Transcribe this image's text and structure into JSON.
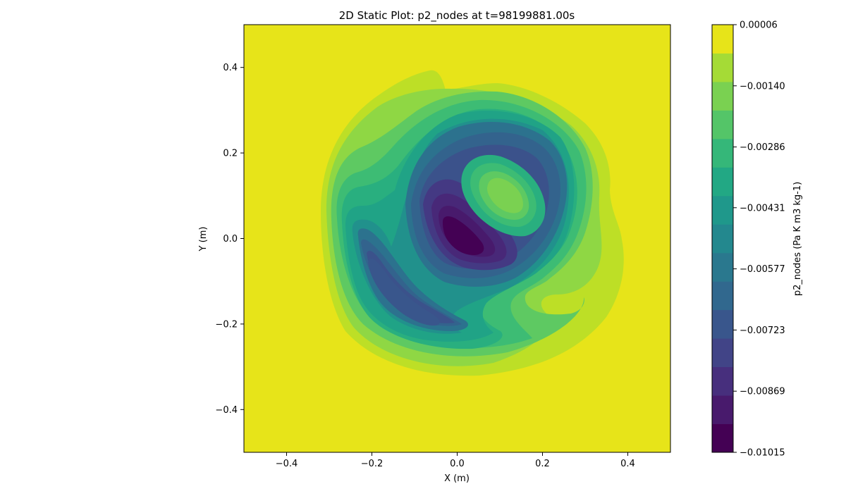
{
  "chart_data": {
    "type": "contour",
    "title": "2D Static Plot: p2_nodes at t=98199881.00s",
    "xlabel": "X (m)",
    "ylabel": "Y (m)",
    "xlim": [
      -0.5,
      0.5
    ],
    "ylim": [
      -0.5,
      0.5
    ],
    "x_ticks": [
      -0.4,
      -0.2,
      0.0,
      0.2,
      0.4
    ],
    "x_tick_labels": [
      "−0.4",
      "−0.2",
      "0.0",
      "0.2",
      "0.4"
    ],
    "y_ticks": [
      0.4,
      0.2,
      0.0,
      -0.2,
      -0.4
    ],
    "y_tick_labels": [
      "0.4",
      "0.2",
      "0.0",
      "−0.2",
      "−0.4"
    ],
    "colorbar": {
      "label": "p2_nodes (Pa K m3 kg-1)",
      "min": -0.01015,
      "max": 6e-05,
      "ticks": [
        6e-05,
        -0.0014,
        -0.00286,
        -0.00431,
        -0.00577,
        -0.00723,
        -0.00869,
        -0.01015
      ],
      "tick_labels": [
        "0.00006",
        "−0.00140",
        "−0.00286",
        "−0.00431",
        "−0.00577",
        "−0.00723",
        "−0.00869",
        "−0.01015"
      ],
      "levels": 14,
      "colors": [
        "#440154",
        "#481a6c",
        "#472f7d",
        "#414487",
        "#39568c",
        "#31688e",
        "#2a788e",
        "#23888e",
        "#1f988b",
        "#22a884",
        "#35b779",
        "#54c568",
        "#7ad151",
        "#a5db36",
        "#d2e21b",
        "#e7e419"
      ]
    },
    "field_background": -0.0
  }
}
